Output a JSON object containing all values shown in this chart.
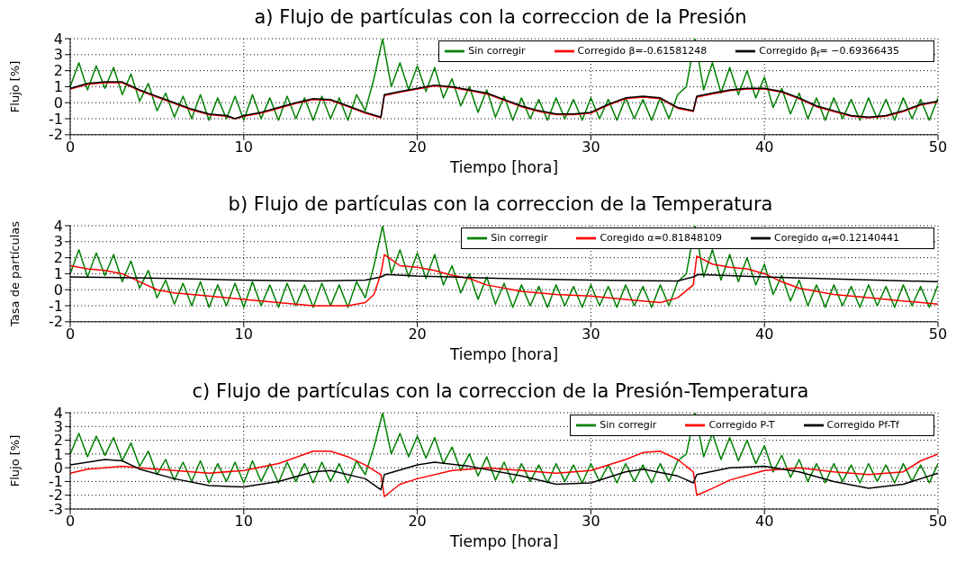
{
  "chart_data": [
    {
      "type": "line",
      "title": "a) Flujo de partículas con la correccion de la Presión",
      "xlabel": "Tiempo [hora]",
      "ylabel": "Flujo [%]",
      "xlim": [
        0,
        50
      ],
      "xticks": [
        0,
        10,
        20,
        30,
        40,
        50
      ],
      "ylim": [
        -2,
        4
      ],
      "yticks": [
        -2,
        -1,
        0,
        1,
        2,
        3,
        4
      ],
      "grid": true,
      "legend": "top right",
      "x": [
        0,
        0.5,
        1,
        1.5,
        2,
        2.5,
        3,
        3.5,
        4,
        4.5,
        5,
        5.5,
        6,
        6.5,
        7,
        7.5,
        8,
        8.5,
        9,
        9.5,
        10,
        10.5,
        11,
        11.5,
        12,
        12.5,
        13,
        13.5,
        14,
        14.5,
        15,
        15.5,
        16,
        16.5,
        17,
        17.5,
        18,
        18.5,
        19,
        19.5,
        20,
        20.5,
        21,
        21.5,
        22,
        22.5,
        23,
        23.5,
        24,
        24.5,
        25,
        25.5,
        26,
        26.5,
        27,
        27.5,
        28,
        28.5,
        29,
        29.5,
        30,
        30.5,
        31,
        31.5,
        32,
        32.5,
        33,
        33.5,
        34,
        34.5,
        35,
        35.5,
        36,
        36.5,
        37,
        37.5,
        38,
        38.5,
        39,
        39.5,
        40,
        40.5,
        41,
        41.5,
        42,
        42.5,
        43,
        43.5,
        44,
        44.5,
        45,
        45.5,
        46,
        46.5,
        47,
        47.5,
        48,
        48.5,
        49,
        49.5,
        50
      ],
      "series": [
        {
          "name": "Sin corregir",
          "color": "#008000",
          "values": [
            1.0,
            2.5,
            0.8,
            2.3,
            0.9,
            2.2,
            0.5,
            1.8,
            0.1,
            1.2,
            -0.5,
            0.6,
            -0.9,
            0.4,
            -1.0,
            0.5,
            -1.1,
            0.3,
            -1.0,
            0.4,
            -1.1,
            0.5,
            -1.0,
            0.3,
            -1.1,
            0.4,
            -1.0,
            0.3,
            -1.1,
            0.4,
            -1.0,
            0.3,
            -1.1,
            0.5,
            -0.5,
            1.5,
            4.0,
            1.0,
            2.5,
            0.8,
            2.3,
            0.7,
            2.2,
            0.3,
            1.5,
            -0.2,
            1.0,
            -0.6,
            0.8,
            -0.9,
            0.4,
            -1.1,
            0.3,
            -1.0,
            0.2,
            -1.1,
            0.3,
            -1.0,
            0.2,
            -1.1,
            0.3,
            -1.0,
            0.2,
            -1.1,
            0.3,
            -1.0,
            0.2,
            -1.1,
            0.3,
            -1.0,
            0.5,
            1.0,
            4.0,
            0.8,
            2.5,
            0.6,
            2.2,
            0.5,
            2.0,
            0.3,
            1.6,
            -0.3,
            0.9,
            -0.7,
            0.6,
            -1.0,
            0.3,
            -1.1,
            0.3,
            -1.0,
            0.2,
            -1.1,
            0.3,
            -1.0,
            0.2,
            -1.1,
            0.3,
            -1.0,
            0.2,
            -1.1,
            0.3
          ]
        },
        {
          "name": "Corregido β=-0.61581248",
          "color": "#ff0000",
          "x": [
            0,
            1,
            2,
            3,
            4,
            5,
            6,
            7,
            8,
            9,
            9.5,
            10,
            11,
            12,
            13,
            14,
            15,
            16,
            17,
            17.9,
            18.1,
            19,
            20,
            21,
            22,
            23,
            24,
            25,
            26,
            27,
            28,
            29,
            30,
            31,
            32,
            33,
            34,
            35,
            35.9,
            36.1,
            37,
            38,
            39,
            40,
            41,
            42,
            43,
            44,
            45,
            46,
            47,
            48,
            49,
            50
          ],
          "values": [
            0.85,
            1.15,
            1.25,
            1.25,
            0.75,
            0.35,
            -0.05,
            -0.45,
            -0.75,
            -0.85,
            -1.0,
            -0.85,
            -0.65,
            -0.35,
            -0.05,
            0.2,
            0.15,
            -0.25,
            -0.65,
            -0.95,
            0.45,
            0.65,
            0.85,
            1.05,
            0.95,
            0.75,
            0.55,
            0.15,
            -0.25,
            -0.55,
            -0.75,
            -0.75,
            -0.65,
            -0.15,
            0.25,
            0.35,
            0.25,
            -0.35,
            -0.55,
            0.35,
            0.55,
            0.75,
            0.85,
            0.85,
            0.65,
            0.25,
            -0.25,
            -0.55,
            -0.85,
            -0.95,
            -0.85,
            -0.55,
            -0.15,
            0.05
          ]
        },
        {
          "name": "Corregido β$_{f}$= −0.69366435",
          "color": "#000000",
          "x": [
            0,
            1,
            2,
            3,
            4,
            5,
            6,
            7,
            8,
            9,
            9.5,
            10,
            11,
            12,
            13,
            14,
            15,
            16,
            17,
            17.9,
            18.1,
            19,
            20,
            21,
            22,
            23,
            24,
            25,
            26,
            27,
            28,
            29,
            30,
            31,
            32,
            33,
            34,
            35,
            35.9,
            36.1,
            37,
            38,
            39,
            40,
            41,
            42,
            43,
            44,
            45,
            46,
            47,
            48,
            49,
            50
          ],
          "values": [
            0.9,
            1.2,
            1.3,
            1.3,
            0.8,
            0.4,
            0,
            -0.4,
            -0.7,
            -0.8,
            -1.0,
            -0.8,
            -0.6,
            -0.3,
            0,
            0.25,
            0.2,
            -0.2,
            -0.6,
            -0.9,
            0.5,
            0.7,
            0.9,
            1.1,
            1.0,
            0.8,
            0.6,
            0.2,
            -0.2,
            -0.5,
            -0.7,
            -0.7,
            -0.6,
            -0.1,
            0.3,
            0.4,
            0.3,
            -0.3,
            -0.5,
            0.4,
            0.6,
            0.8,
            0.9,
            0.9,
            0.7,
            0.3,
            -0.2,
            -0.5,
            -0.8,
            -0.9,
            -0.8,
            -0.5,
            -0.1,
            0.1
          ]
        }
      ]
    },
    {
      "type": "line",
      "title": "b) Flujo de partículas con la correccion de la Temperatura",
      "xlabel": "Tiempo [hora]",
      "ylabel": "Tasa de partículas",
      "xlim": [
        0,
        50
      ],
      "xticks": [
        0,
        10,
        20,
        30,
        40,
        50
      ],
      "ylim": [
        -2,
        4
      ],
      "yticks": [
        -2,
        -1,
        0,
        1,
        2,
        3,
        4
      ],
      "grid": true,
      "legend": "top right",
      "x": [
        0,
        0.5,
        1,
        1.5,
        2,
        2.5,
        3,
        3.5,
        4,
        4.5,
        5,
        5.5,
        6,
        6.5,
        7,
        7.5,
        8,
        8.5,
        9,
        9.5,
        10,
        10.5,
        11,
        11.5,
        12,
        12.5,
        13,
        13.5,
        14,
        14.5,
        15,
        15.5,
        16,
        16.5,
        17,
        17.5,
        18,
        18.5,
        19,
        19.5,
        20,
        20.5,
        21,
        21.5,
        22,
        22.5,
        23,
        23.5,
        24,
        24.5,
        25,
        25.5,
        26,
        26.5,
        27,
        27.5,
        28,
        28.5,
        29,
        29.5,
        30,
        30.5,
        31,
        31.5,
        32,
        32.5,
        33,
        33.5,
        34,
        34.5,
        35,
        35.5,
        36,
        36.5,
        37,
        37.5,
        38,
        38.5,
        39,
        39.5,
        40,
        40.5,
        41,
        41.5,
        42,
        42.5,
        43,
        43.5,
        44,
        44.5,
        45,
        45.5,
        46,
        46.5,
        47,
        47.5,
        48,
        48.5,
        49,
        49.5,
        50
      ],
      "series": [
        {
          "name": "Sin corregir",
          "color": "#008000",
          "values": [
            1.0,
            2.5,
            0.8,
            2.3,
            0.9,
            2.2,
            0.5,
            1.8,
            0.1,
            1.2,
            -0.5,
            0.6,
            -0.9,
            0.4,
            -1.0,
            0.5,
            -1.1,
            0.3,
            -1.0,
            0.4,
            -1.1,
            0.5,
            -1.0,
            0.3,
            -1.1,
            0.4,
            -1.0,
            0.3,
            -1.1,
            0.4,
            -1.0,
            0.3,
            -1.1,
            0.5,
            -0.5,
            1.5,
            4.0,
            1.0,
            2.5,
            0.8,
            2.3,
            0.7,
            2.2,
            0.3,
            1.5,
            -0.2,
            1.0,
            -0.6,
            0.8,
            -0.9,
            0.4,
            -1.1,
            0.3,
            -1.0,
            0.2,
            -1.1,
            0.3,
            -1.0,
            0.2,
            -1.1,
            0.3,
            -1.0,
            0.2,
            -1.1,
            0.3,
            -1.0,
            0.2,
            -1.1,
            0.3,
            -1.0,
            0.5,
            1.0,
            4.0,
            0.8,
            2.5,
            0.6,
            2.2,
            0.5,
            2.0,
            0.3,
            1.6,
            -0.3,
            0.9,
            -0.7,
            0.6,
            -1.0,
            0.3,
            -1.1,
            0.3,
            -1.0,
            0.2,
            -1.1,
            0.3,
            -1.0,
            0.2,
            -1.1,
            0.3,
            -1.0,
            0.2,
            -1.1,
            0.3
          ]
        },
        {
          "name": "Coregido α=0.81848109",
          "color": "#ff0000",
          "x": [
            0,
            1,
            2,
            3,
            4,
            5,
            6,
            8,
            10,
            12,
            14,
            16,
            17,
            17.5,
            17.9,
            18.1,
            19,
            20,
            21,
            22,
            23,
            24,
            26,
            28,
            30,
            32,
            34,
            35,
            35.9,
            36.1,
            37,
            38,
            39,
            40,
            41,
            42,
            44,
            46,
            48,
            50
          ],
          "values": [
            1.5,
            1.3,
            1.2,
            1.0,
            0.5,
            0,
            -0.2,
            -0.4,
            -0.6,
            -0.8,
            -1.0,
            -1.0,
            -0.8,
            -0.3,
            1.0,
            2.2,
            1.5,
            1.4,
            1.2,
            0.9,
            0.7,
            0.3,
            -0.1,
            -0.3,
            -0.4,
            -0.6,
            -0.8,
            -0.5,
            0.3,
            2.1,
            1.6,
            1.4,
            1.3,
            1.0,
            0.5,
            0.1,
            -0.3,
            -0.5,
            -0.7,
            -0.9
          ]
        },
        {
          "name": "Coregido α$_{f}$=0.12140441",
          "color": "#000000",
          "x": [
            0,
            3,
            6,
            10,
            14,
            17,
            17.9,
            18.2,
            20,
            25,
            30,
            35,
            35.9,
            36.2,
            40,
            45,
            50
          ],
          "values": [
            0.8,
            0.75,
            0.7,
            0.6,
            0.55,
            0.6,
            0.8,
            0.95,
            0.85,
            0.7,
            0.6,
            0.55,
            0.8,
            0.95,
            0.8,
            0.65,
            0.5
          ]
        }
      ]
    },
    {
      "type": "line",
      "title": "c) Flujo de partículas con la correccion de la Presión-Temperatura",
      "xlabel": "Tiempo [hora]",
      "ylabel": "Flujo [%]",
      "xlim": [
        0,
        50
      ],
      "xticks": [
        0,
        10,
        20,
        30,
        40,
        50
      ],
      "ylim": [
        -3,
        4
      ],
      "yticks": [
        -3,
        -2,
        -1,
        0,
        1,
        2,
        3,
        4
      ],
      "grid": true,
      "legend": "top right",
      "x": [
        0,
        0.5,
        1,
        1.5,
        2,
        2.5,
        3,
        3.5,
        4,
        4.5,
        5,
        5.5,
        6,
        6.5,
        7,
        7.5,
        8,
        8.5,
        9,
        9.5,
        10,
        10.5,
        11,
        11.5,
        12,
        12.5,
        13,
        13.5,
        14,
        14.5,
        15,
        15.5,
        16,
        16.5,
        17,
        17.5,
        18,
        18.5,
        19,
        19.5,
        20,
        20.5,
        21,
        21.5,
        22,
        22.5,
        23,
        23.5,
        24,
        24.5,
        25,
        25.5,
        26,
        26.5,
        27,
        27.5,
        28,
        28.5,
        29,
        29.5,
        30,
        30.5,
        31,
        31.5,
        32,
        32.5,
        33,
        33.5,
        34,
        34.5,
        35,
        35.5,
        36,
        36.5,
        37,
        37.5,
        38,
        38.5,
        39,
        39.5,
        40,
        40.5,
        41,
        41.5,
        42,
        42.5,
        43,
        43.5,
        44,
        44.5,
        45,
        45.5,
        46,
        46.5,
        47,
        47.5,
        48,
        48.5,
        49,
        49.5,
        50
      ],
      "series": [
        {
          "name": "Sin corregir",
          "color": "#008000",
          "values": [
            1.0,
            2.5,
            0.8,
            2.3,
            0.9,
            2.2,
            0.5,
            1.8,
            0.1,
            1.2,
            -0.5,
            0.6,
            -0.9,
            0.4,
            -1.0,
            0.5,
            -1.1,
            0.3,
            -1.0,
            0.4,
            -1.1,
            0.5,
            -1.0,
            0.3,
            -1.1,
            0.4,
            -1.0,
            0.3,
            -1.1,
            0.4,
            -1.0,
            0.3,
            -1.1,
            0.5,
            -0.5,
            1.5,
            4.0,
            1.0,
            2.5,
            0.8,
            2.3,
            0.7,
            2.2,
            0.3,
            1.5,
            -0.2,
            1.0,
            -0.6,
            0.8,
            -0.9,
            0.4,
            -1.1,
            0.3,
            -1.0,
            0.2,
            -1.1,
            0.3,
            -1.0,
            0.2,
            -1.1,
            0.3,
            -1.0,
            0.2,
            -1.1,
            0.3,
            -1.0,
            0.2,
            -1.1,
            0.3,
            -1.0,
            0.5,
            1.0,
            4.0,
            0.8,
            2.5,
            0.6,
            2.2,
            0.5,
            2.0,
            0.3,
            1.6,
            -0.3,
            0.9,
            -0.7,
            0.6,
            -1.0,
            0.3,
            -1.1,
            0.3,
            -1.0,
            0.2,
            -1.1,
            0.3,
            -1.0,
            0.2,
            -1.1,
            0.3,
            -1.0,
            0.2,
            -1.1,
            0.3
          ]
        },
        {
          "name": "Corregido P-T",
          "color": "#ff0000",
          "x": [
            0,
            1,
            2,
            3,
            4,
            6,
            8,
            10,
            12,
            14,
            15,
            16,
            17,
            17.9,
            18.1,
            19,
            20,
            22,
            24,
            26,
            28,
            30,
            32,
            33,
            34,
            35,
            35.9,
            36.1,
            37,
            38,
            40,
            42,
            44,
            46,
            48,
            49,
            50
          ],
          "values": [
            -0.4,
            -0.1,
            0,
            0.1,
            0,
            -0.2,
            -0.4,
            -0.2,
            0.3,
            1.2,
            1.2,
            0.8,
            0.2,
            -0.5,
            -2.1,
            -1.2,
            -0.8,
            -0.2,
            0,
            -0.2,
            -0.4,
            -0.2,
            0.6,
            1.1,
            1.2,
            0.6,
            -0.3,
            -2.0,
            -1.5,
            -0.9,
            -0.2,
            0,
            -0.3,
            -0.5,
            -0.3,
            0.5,
            1.0
          ]
        },
        {
          "name": "Corregido Pf-Tf",
          "color": "#000000",
          "x": [
            0,
            2,
            3,
            4,
            6,
            8,
            10,
            12,
            14,
            15,
            17,
            17.9,
            18.1,
            20,
            21,
            23,
            26,
            28,
            30,
            32,
            33,
            35,
            35.9,
            36.1,
            38,
            40,
            42,
            44,
            46,
            48,
            50
          ],
          "values": [
            0.2,
            0.6,
            0.5,
            -0.1,
            -0.8,
            -1.3,
            -1.4,
            -1.0,
            -0.3,
            -0.2,
            -0.8,
            -1.6,
            -0.5,
            0.2,
            0.4,
            0.1,
            -0.6,
            -1.2,
            -1.1,
            -0.3,
            -0.1,
            -0.6,
            -1.1,
            -0.5,
            0,
            0.1,
            -0.3,
            -1.0,
            -1.5,
            -1.2,
            -0.4
          ]
        }
      ]
    }
  ]
}
